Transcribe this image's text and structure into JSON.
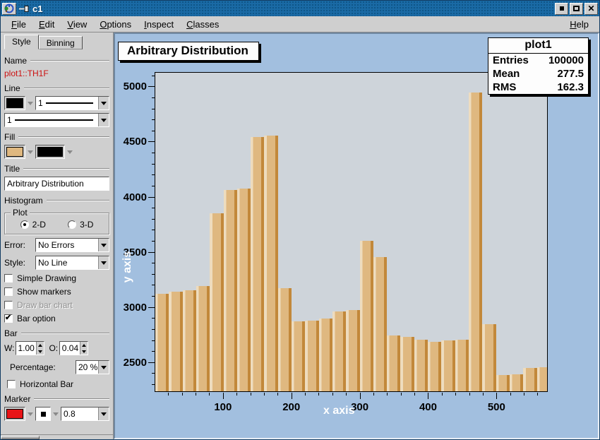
{
  "window": {
    "title": "c1",
    "controls": {
      "minimize": "",
      "maximize": "",
      "close": "✕"
    }
  },
  "menu": {
    "items": [
      "File",
      "Edit",
      "View",
      "Options",
      "Inspect",
      "Classes"
    ],
    "help": "Help"
  },
  "editor": {
    "tabs": [
      {
        "label": "Style"
      },
      {
        "label": "Binning"
      }
    ],
    "name_section": {
      "label": "Name",
      "value": "plot1::TH1F"
    },
    "line_section": {
      "label": "Line",
      "width_value": "1",
      "style_value": "1",
      "color": "#000000"
    },
    "fill_section": {
      "label": "Fill",
      "color": "#dfb880",
      "pattern_color": "#000000"
    },
    "title_section": {
      "label": "Title",
      "value": "Arbitrary Distribution"
    },
    "histogram_section": {
      "label": "Histogram",
      "group_label": "Plot",
      "options": [
        "2-D",
        "3-D"
      ],
      "selected": "2-D"
    },
    "error_row": {
      "label": "Error:",
      "value": "No Errors"
    },
    "style_row": {
      "label": "Style:",
      "value": "No Line"
    },
    "checkboxes": [
      {
        "label": "Simple Drawing",
        "checked": false,
        "disabled": false
      },
      {
        "label": "Show markers",
        "checked": false,
        "disabled": false
      },
      {
        "label": "Draw bar chart",
        "checked": false,
        "disabled": true
      },
      {
        "label": "Bar option",
        "checked": true,
        "disabled": false
      }
    ],
    "bar_section": {
      "label": "Bar",
      "w_label": "W:",
      "w_value": "1.00",
      "o_label": "O:",
      "o_value": "0.04",
      "percentage_label": "Percentage:",
      "percentage_value": "20 %",
      "horizontal_label": "Horizontal Bar"
    },
    "marker_section": {
      "label": "Marker",
      "color": "#e81417",
      "size_value": "0.8"
    }
  },
  "canvas": {
    "stats": {
      "title": "plot1",
      "rows": [
        [
          "Entries",
          "100000"
        ],
        [
          "Mean",
          "277.5"
        ],
        [
          "RMS",
          "162.3"
        ]
      ]
    }
  },
  "chart_data": {
    "type": "bar",
    "title": "Arbitrary Distribution",
    "xlabel": "x axis",
    "ylabel": "y axis",
    "bin_start": 0,
    "bin_width": 20,
    "values": [
      3120,
      3135,
      3150,
      3185,
      3850,
      4065,
      4075,
      4545,
      4555,
      3170,
      2865,
      2875,
      2890,
      2955,
      2970,
      3600,
      3450,
      2735,
      2725,
      2700,
      2680,
      2695,
      2700,
      4950,
      2840,
      2380,
      2385,
      2440,
      2450
    ],
    "xlim": [
      0,
      575
    ],
    "ylim": [
      2230,
      5130
    ],
    "x_ticks": [
      100,
      200,
      300,
      400,
      500
    ],
    "y_ticks": [
      2500,
      3000,
      3500,
      4000,
      4500,
      5000
    ],
    "x_minor_step": 20,
    "y_minor_step": 100,
    "legend": "none",
    "grid": false,
    "bar_color_light": "#eedcbe",
    "bar_color_mid": "#dfb880",
    "bar_color_dark": "#c2883a",
    "frame_bg": "#ced4da",
    "canvas_bg": "#a2bfdf"
  }
}
